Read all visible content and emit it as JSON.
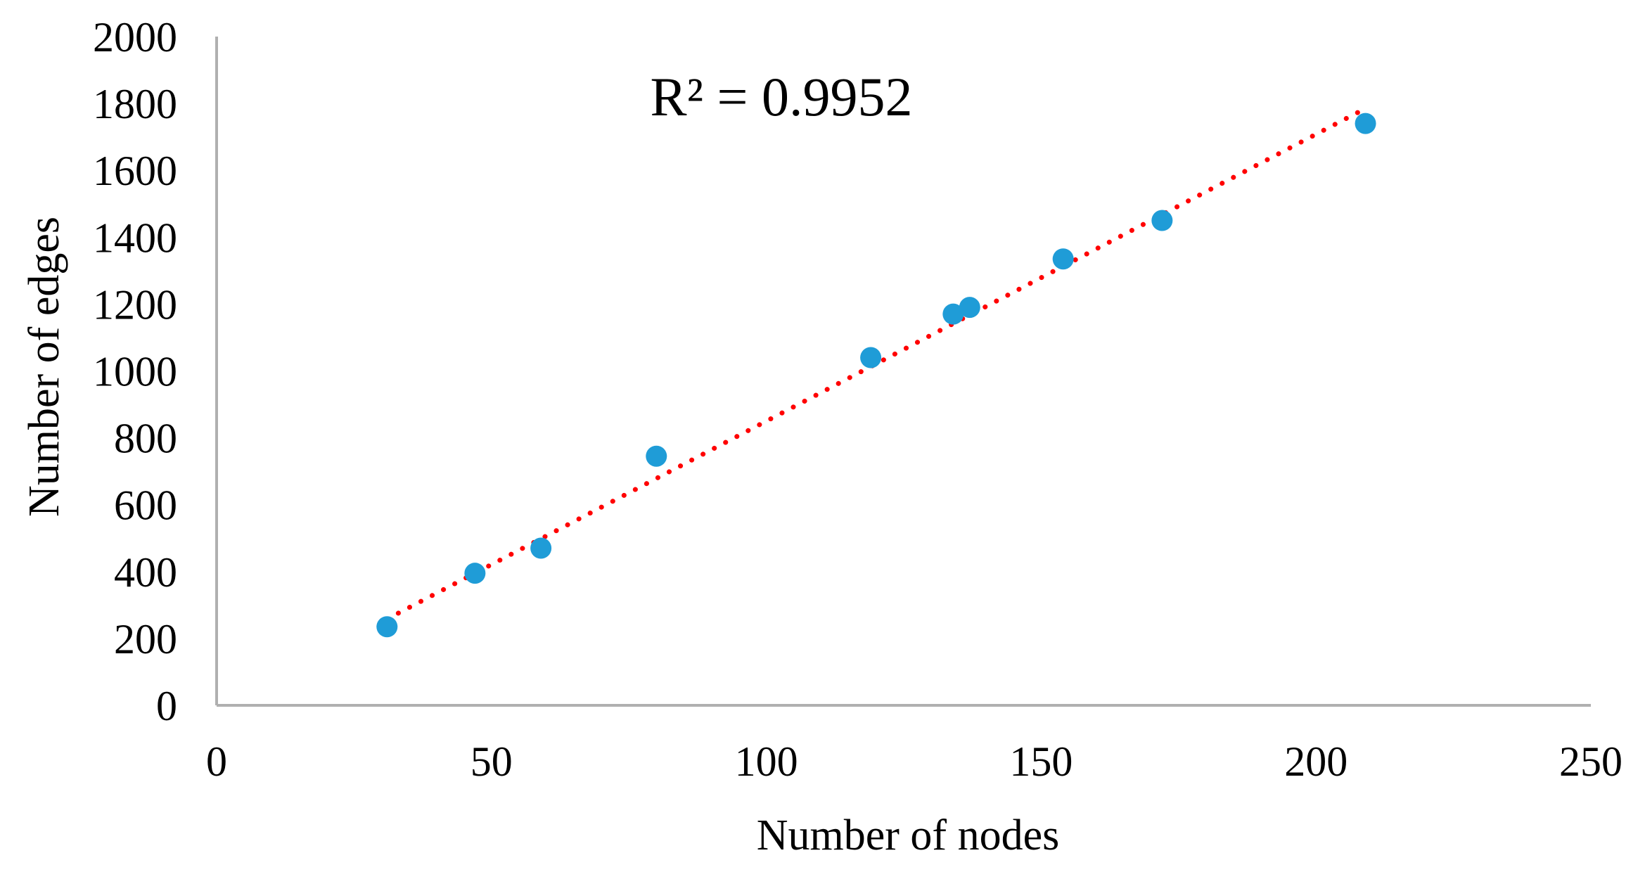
{
  "chart_data": {
    "type": "scatter",
    "title": "",
    "xlabel": "Number of nodes",
    "ylabel": "Number of edges",
    "xlim": [
      0,
      250
    ],
    "ylim": [
      0,
      2000
    ],
    "x_ticks": [
      0,
      50,
      100,
      150,
      200,
      250
    ],
    "y_ticks": [
      0,
      200,
      400,
      600,
      800,
      1000,
      1200,
      1400,
      1600,
      1800,
      2000
    ],
    "x_tick_labels": [
      "0",
      "50",
      "100",
      "150",
      "200",
      "250"
    ],
    "y_tick_labels": [
      "0",
      "200",
      "400",
      "600",
      "800",
      "1000",
      "1200",
      "1400",
      "1600",
      "1800",
      "2000"
    ],
    "grid": false,
    "legend": "none",
    "series": [
      {
        "x": [
          31,
          47,
          59,
          80,
          119,
          134,
          137,
          154,
          172,
          209
        ],
        "y": [
          235,
          395,
          470,
          745,
          1040,
          1170,
          1190,
          1335,
          1450,
          1740
        ],
        "color": "#1F9CD7"
      }
    ],
    "trendline": {
      "type": "linear",
      "x_range": [
        31,
        209
      ],
      "y_range": [
        258,
        1785
      ],
      "color": "#FF0000",
      "style": "dotted"
    },
    "annotations": [
      {
        "text": "R² = 0.9952"
      }
    ]
  }
}
